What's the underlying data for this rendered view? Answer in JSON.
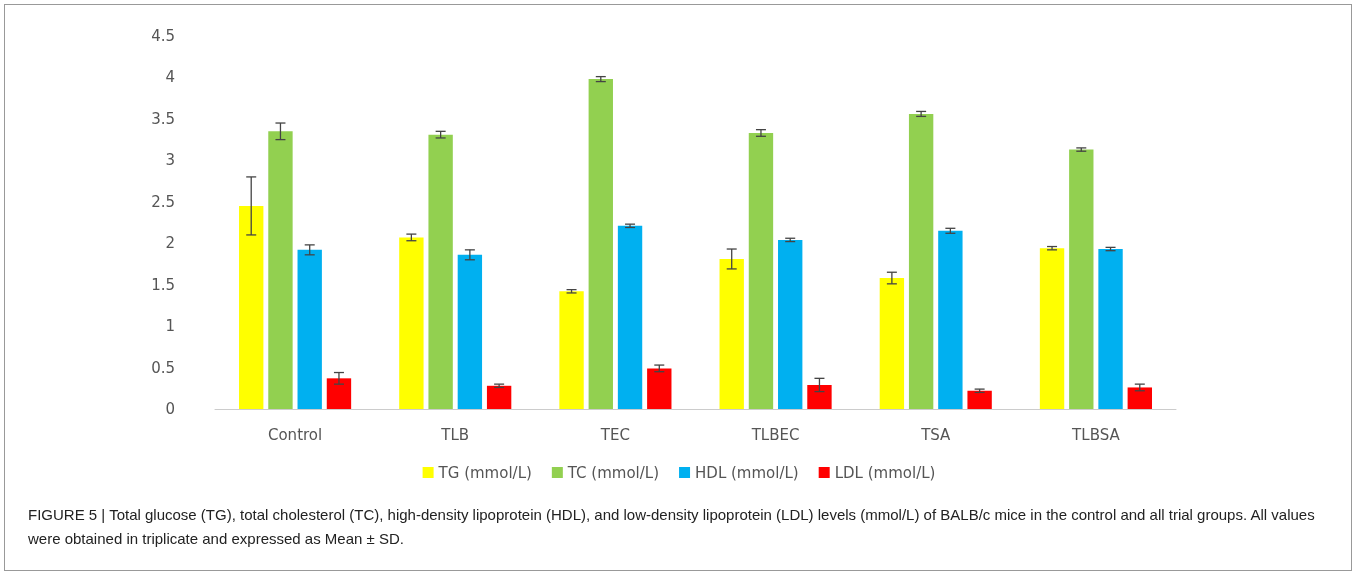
{
  "chart_data": {
    "type": "bar",
    "categories": [
      "Control",
      "TLB",
      "TEC",
      "TLBEC",
      "TSA",
      "TLBSA"
    ],
    "series": [
      {
        "name": "TG (mmol/L)",
        "color": "#ffff00",
        "values": [
          2.45,
          2.07,
          1.42,
          1.81,
          1.58,
          1.94
        ],
        "errors": [
          0.35,
          0.04,
          0.02,
          0.12,
          0.07,
          0.02
        ]
      },
      {
        "name": "TC (mmol/L)",
        "color": "#92d050",
        "values": [
          3.35,
          3.31,
          3.98,
          3.33,
          3.56,
          3.13
        ],
        "errors": [
          0.1,
          0.04,
          0.03,
          0.04,
          0.03,
          0.02
        ]
      },
      {
        "name": "HDL (mmol/L)",
        "color": "#00b0f0",
        "values": [
          1.92,
          1.86,
          2.21,
          2.04,
          2.15,
          1.93
        ],
        "errors": [
          0.06,
          0.06,
          0.02,
          0.02,
          0.03,
          0.02
        ]
      },
      {
        "name": "LDL (mmol/L)",
        "color": "#ff0000",
        "values": [
          0.37,
          0.28,
          0.49,
          0.29,
          0.22,
          0.26
        ],
        "errors": [
          0.07,
          0.02,
          0.04,
          0.08,
          0.02,
          0.04
        ]
      }
    ],
    "ylim": [
      0,
      4.5
    ],
    "yticks": [
      0,
      0.5,
      1,
      1.5,
      2,
      2.5,
      3,
      3.5,
      4,
      4.5
    ],
    "grid": false,
    "legend": "bottom",
    "annotations": [
      "FIGURE 5 | Total glucose (TG), total cholesterol (TC), high-density lipoprotein (HDL), and low-density lipoprotein (LDL) levels (mmol/L) of BALB/c mice in the control and all trial groups. All values were obtained in triplicate and expressed as Mean ± SD."
    ]
  }
}
